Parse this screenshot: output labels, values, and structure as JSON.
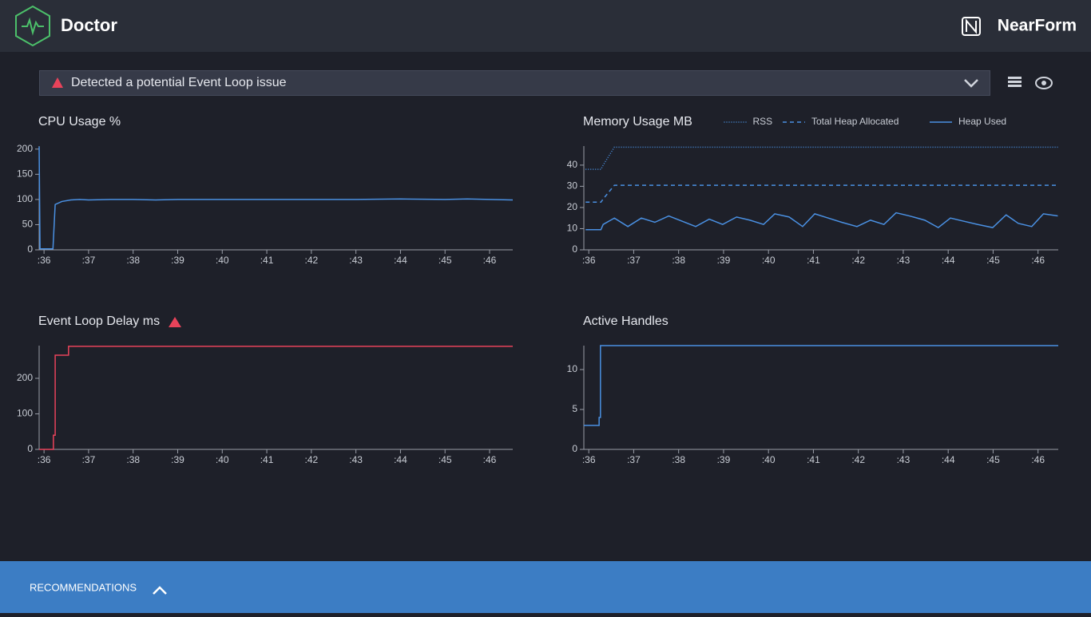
{
  "header": {
    "title": "Doctor",
    "brand": "NearForm"
  },
  "alert": {
    "text": "Detected a potential Event Loop issue"
  },
  "footer": {
    "label": "RECOMMENDATIONS"
  },
  "chart_data": [
    {
      "type": "line",
      "title": "CPU Usage %",
      "x": [
        35.89,
        35.91,
        36.2,
        36.25,
        36.4,
        36.6,
        36.8,
        37,
        37.5,
        38,
        38.5,
        39,
        40,
        41,
        42,
        43,
        44,
        45,
        45.5,
        46,
        46.52
      ],
      "series": [
        {
          "color": "#4a90e2",
          "style": "solid",
          "values": [
            205,
            2,
            2,
            90,
            96,
            99,
            100,
            99,
            100,
            100,
            99,
            100,
            100,
            100,
            100,
            100,
            101,
            100,
            101,
            100,
            99
          ]
        }
      ],
      "xlim": [
        35.89,
        46.52
      ],
      "ylim": [
        0,
        206
      ],
      "yticks": [
        0,
        50,
        100,
        150,
        200
      ],
      "xticks": [
        {
          "value": 36,
          "label": ":36"
        },
        {
          "value": 37,
          "label": ":37"
        },
        {
          "value": 38,
          "label": ":38"
        },
        {
          "value": 39,
          "label": ":39"
        },
        {
          "value": 40,
          "label": ":40"
        },
        {
          "value": 41,
          "label": ":41"
        },
        {
          "value": 42,
          "label": ":42"
        },
        {
          "value": 43,
          "label": ":43"
        },
        {
          "value": 44,
          "label": ":44"
        },
        {
          "value": 45,
          "label": ":45"
        },
        {
          "value": 46,
          "label": ":46"
        }
      ]
    },
    {
      "type": "line",
      "title": "Memory Usage MB",
      "x": [
        35.93,
        36.27,
        36.32,
        36.57,
        36.87,
        37.17,
        37.47,
        37.78,
        38.08,
        38.38,
        38.68,
        38.98,
        39.29,
        39.59,
        39.89,
        40.14,
        40.46,
        40.76,
        41.03,
        41.33,
        41.63,
        41.97,
        42.27,
        42.57,
        42.84,
        43.14,
        43.48,
        43.78,
        44.05,
        44.35,
        44.65,
        44.99,
        45.29,
        45.56,
        45.86,
        46.12,
        46.44
      ],
      "series": [
        {
          "name": "RSS",
          "color": "#4a90e2",
          "style": "dotted",
          "values": [
            38,
            38,
            40,
            48.5,
            48.5,
            48.5,
            48.5,
            48.5,
            48.5,
            48.5,
            48.5,
            48.5,
            48.5,
            48.5,
            48.5,
            48.5,
            48.5,
            48.5,
            48.5,
            48.5,
            48.5,
            48.5,
            48.5,
            48.5,
            48.5,
            48.5,
            48.5,
            48.5,
            48.5,
            48.5,
            48.5,
            48.5,
            48.5,
            48.5,
            48.5,
            48.5,
            48.5
          ]
        },
        {
          "name": "Total Heap Allocated",
          "color": "#4a90e2",
          "style": "dashed",
          "values": [
            22.5,
            22.5,
            24,
            30.5,
            30.5,
            30.5,
            30.5,
            30.5,
            30.5,
            30.5,
            30.5,
            30.5,
            30.5,
            30.5,
            30.5,
            30.5,
            30.5,
            30.5,
            30.5,
            30.5,
            30.5,
            30.5,
            30.5,
            30.5,
            30.5,
            30.5,
            30.5,
            30.5,
            30.5,
            30.5,
            30.5,
            30.5,
            30.5,
            30.5,
            30.5,
            30.5,
            30.5
          ]
        },
        {
          "name": "Heap Used",
          "color": "#4a90e2",
          "style": "solid",
          "values": [
            9.5,
            9.5,
            12,
            15,
            11,
            15,
            13,
            16,
            13.5,
            11,
            14.5,
            12,
            15.5,
            14,
            12,
            17,
            15.5,
            11,
            17,
            15,
            13,
            11,
            14,
            12,
            17.5,
            16,
            14,
            10.5,
            15,
            13.5,
            12,
            10.5,
            16.5,
            12.5,
            11,
            17,
            16
          ]
        }
      ],
      "xlim": [
        35.89,
        46.45
      ],
      "ylim": [
        0,
        49
      ],
      "yticks": [
        0,
        10,
        20,
        30,
        40
      ],
      "xticks": [
        {
          "value": 36,
          "label": ":36"
        },
        {
          "value": 37,
          "label": ":37"
        },
        {
          "value": 38,
          "label": ":38"
        },
        {
          "value": 39,
          "label": ":39"
        },
        {
          "value": 40,
          "label": ":40"
        },
        {
          "value": 41,
          "label": ":41"
        },
        {
          "value": 42,
          "label": ":42"
        },
        {
          "value": 43,
          "label": ":43"
        },
        {
          "value": 44,
          "label": ":44"
        },
        {
          "value": 45,
          "label": ":45"
        },
        {
          "value": 46,
          "label": ":46"
        }
      ]
    },
    {
      "type": "line",
      "title": "Event Loop Delay ms",
      "x": [
        35.89,
        36.21,
        36.21,
        36.25,
        36.25,
        36.55,
        36.55,
        46.52
      ],
      "series": [
        {
          "color": "#e8435a",
          "style": "solid",
          "values": [
            0,
            0,
            40,
            40,
            265,
            265,
            290,
            290
          ]
        }
      ],
      "xlim": [
        35.89,
        46.52
      ],
      "ylim": [
        0,
        292
      ],
      "yticks": [
        0,
        100,
        200
      ],
      "xticks": [
        {
          "value": 36,
          "label": ":36"
        },
        {
          "value": 37,
          "label": ":37"
        },
        {
          "value": 38,
          "label": ":38"
        },
        {
          "value": 39,
          "label": ":39"
        },
        {
          "value": 40,
          "label": ":40"
        },
        {
          "value": 41,
          "label": ":41"
        },
        {
          "value": 42,
          "label": ":42"
        },
        {
          "value": 43,
          "label": ":43"
        },
        {
          "value": 44,
          "label": ":44"
        },
        {
          "value": 45,
          "label": ":45"
        },
        {
          "value": 46,
          "label": ":46"
        }
      ]
    },
    {
      "type": "line",
      "title": "Active Handles",
      "x": [
        35.89,
        36.23,
        36.23,
        36.26,
        36.26,
        46.45
      ],
      "series": [
        {
          "color": "#4a90e2",
          "style": "solid",
          "values": [
            3,
            3,
            4,
            4,
            13,
            13
          ]
        }
      ],
      "xlim": [
        35.89,
        46.45
      ],
      "ylim": [
        0,
        13
      ],
      "yticks": [
        0,
        5,
        10
      ],
      "xticks": [
        {
          "value": 36,
          "label": ":36"
        },
        {
          "value": 37,
          "label": ":37"
        },
        {
          "value": 38,
          "label": ":38"
        },
        {
          "value": 39,
          "label": ":39"
        },
        {
          "value": 40,
          "label": ":40"
        },
        {
          "value": 41,
          "label": ":41"
        },
        {
          "value": 42,
          "label": ":42"
        },
        {
          "value": 43,
          "label": ":43"
        },
        {
          "value": 44,
          "label": ":44"
        },
        {
          "value": 45,
          "label": ":45"
        },
        {
          "value": 46,
          "label": ":46"
        }
      ]
    }
  ]
}
